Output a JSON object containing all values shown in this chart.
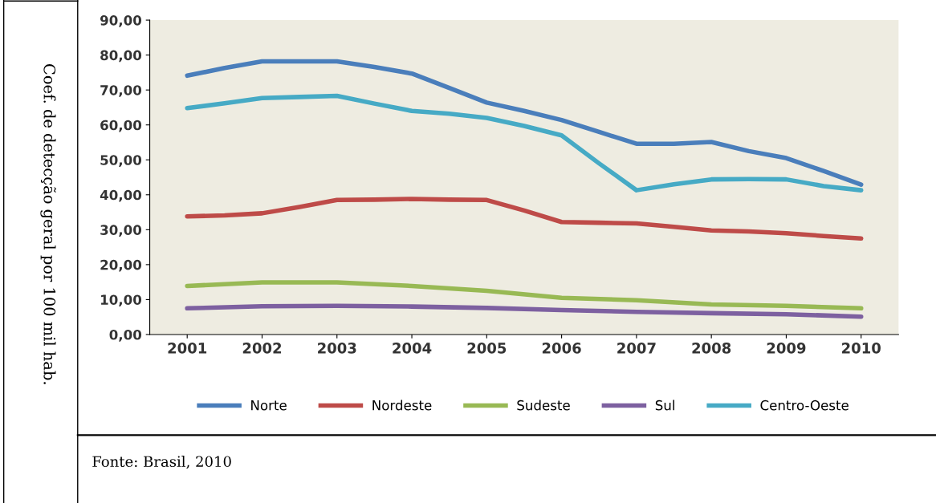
{
  "chart_data": {
    "type": "line",
    "ylabel": "Coef. de detecção geral por 100 mil hab.",
    "annotations": [
      "Fonte: Brasil, 2010"
    ],
    "xlim": [
      2000.5,
      2010.5
    ],
    "xticks": [
      2001,
      2002,
      2003,
      2004,
      2005,
      2006,
      2007,
      2008,
      2009,
      2010
    ],
    "ylim": [
      0,
      90
    ],
    "yticks": [
      {
        "value": 0,
        "label": "0,00"
      },
      {
        "value": 10,
        "label": "10,00"
      },
      {
        "value": 20,
        "label": "20,00"
      },
      {
        "value": 30,
        "label": "30,00"
      },
      {
        "value": 40,
        "label": "40,00"
      },
      {
        "value": 50,
        "label": "50,00"
      },
      {
        "value": 60,
        "label": "60,00"
      },
      {
        "value": 70,
        "label": "70,00"
      },
      {
        "value": 80,
        "label": "80,00"
      },
      {
        "value": 90,
        "label": "90,00"
      }
    ],
    "grid": false,
    "legend": "bottom",
    "marker": "none",
    "line_style": "solid",
    "series": [
      {
        "name": "Norte",
        "color": "#4a7ebb",
        "x": [
          2001,
          2001.5,
          2002,
          2002.5,
          2003,
          2003.5,
          2004,
          2004.5,
          2005,
          2005.5,
          2006,
          2006.5,
          2007,
          2007.5,
          2008,
          2008.5,
          2009,
          2009.5,
          2010
        ],
        "values": [
          74.1,
          76.3,
          78.2,
          78.2,
          78.2,
          76.6,
          74.7,
          70.6,
          66.4,
          64,
          61.4,
          58,
          54.6,
          54.6,
          55.1,
          52.5,
          50.5,
          46.8,
          42.9
        ]
      },
      {
        "name": "Nordeste",
        "color": "#be4b48",
        "x": [
          2001,
          2001.5,
          2002,
          2002.5,
          2003,
          2003.5,
          2004,
          2004.5,
          2005,
          2005.5,
          2006,
          2006.5,
          2007,
          2007.5,
          2008,
          2008.5,
          2009,
          2009.5,
          2010
        ],
        "values": [
          33.8,
          34.1,
          34.7,
          36.5,
          38.5,
          38.6,
          38.8,
          38.6,
          38.5,
          35.5,
          32.2,
          32,
          31.8,
          30.8,
          29.8,
          29.5,
          29,
          28.2,
          27.5
        ]
      },
      {
        "name": "Sudeste",
        "color": "#98b954",
        "x": [
          2001,
          2002,
          2003,
          2004,
          2005,
          2006,
          2007,
          2008,
          2009,
          2010
        ],
        "values": [
          13.9,
          14.9,
          14.9,
          13.9,
          12.5,
          10.5,
          9.8,
          8.6,
          8.2,
          7.5
        ]
      },
      {
        "name": "Sul",
        "color": "#7d60a0",
        "x": [
          2001,
          2002,
          2003,
          2004,
          2005,
          2006,
          2007,
          2008,
          2009,
          2010
        ],
        "values": [
          7.5,
          8.1,
          8.2,
          8,
          7.6,
          7,
          6.5,
          6.1,
          5.8,
          5.1
        ]
      },
      {
        "name": "Centro-Oeste",
        "color": "#46aac5",
        "x": [
          2001,
          2001.5,
          2002,
          2002.5,
          2003,
          2003.5,
          2004,
          2004.5,
          2005,
          2005.5,
          2006,
          2006.5,
          2007,
          2007.5,
          2008,
          2008.5,
          2009,
          2009.5,
          2010
        ],
        "values": [
          64.8,
          66.2,
          67.7,
          68,
          68.3,
          66.1,
          64,
          63.2,
          62,
          59.7,
          57,
          49,
          41.3,
          43,
          44.4,
          44.5,
          44.4,
          42.5,
          41.3
        ]
      }
    ]
  }
}
